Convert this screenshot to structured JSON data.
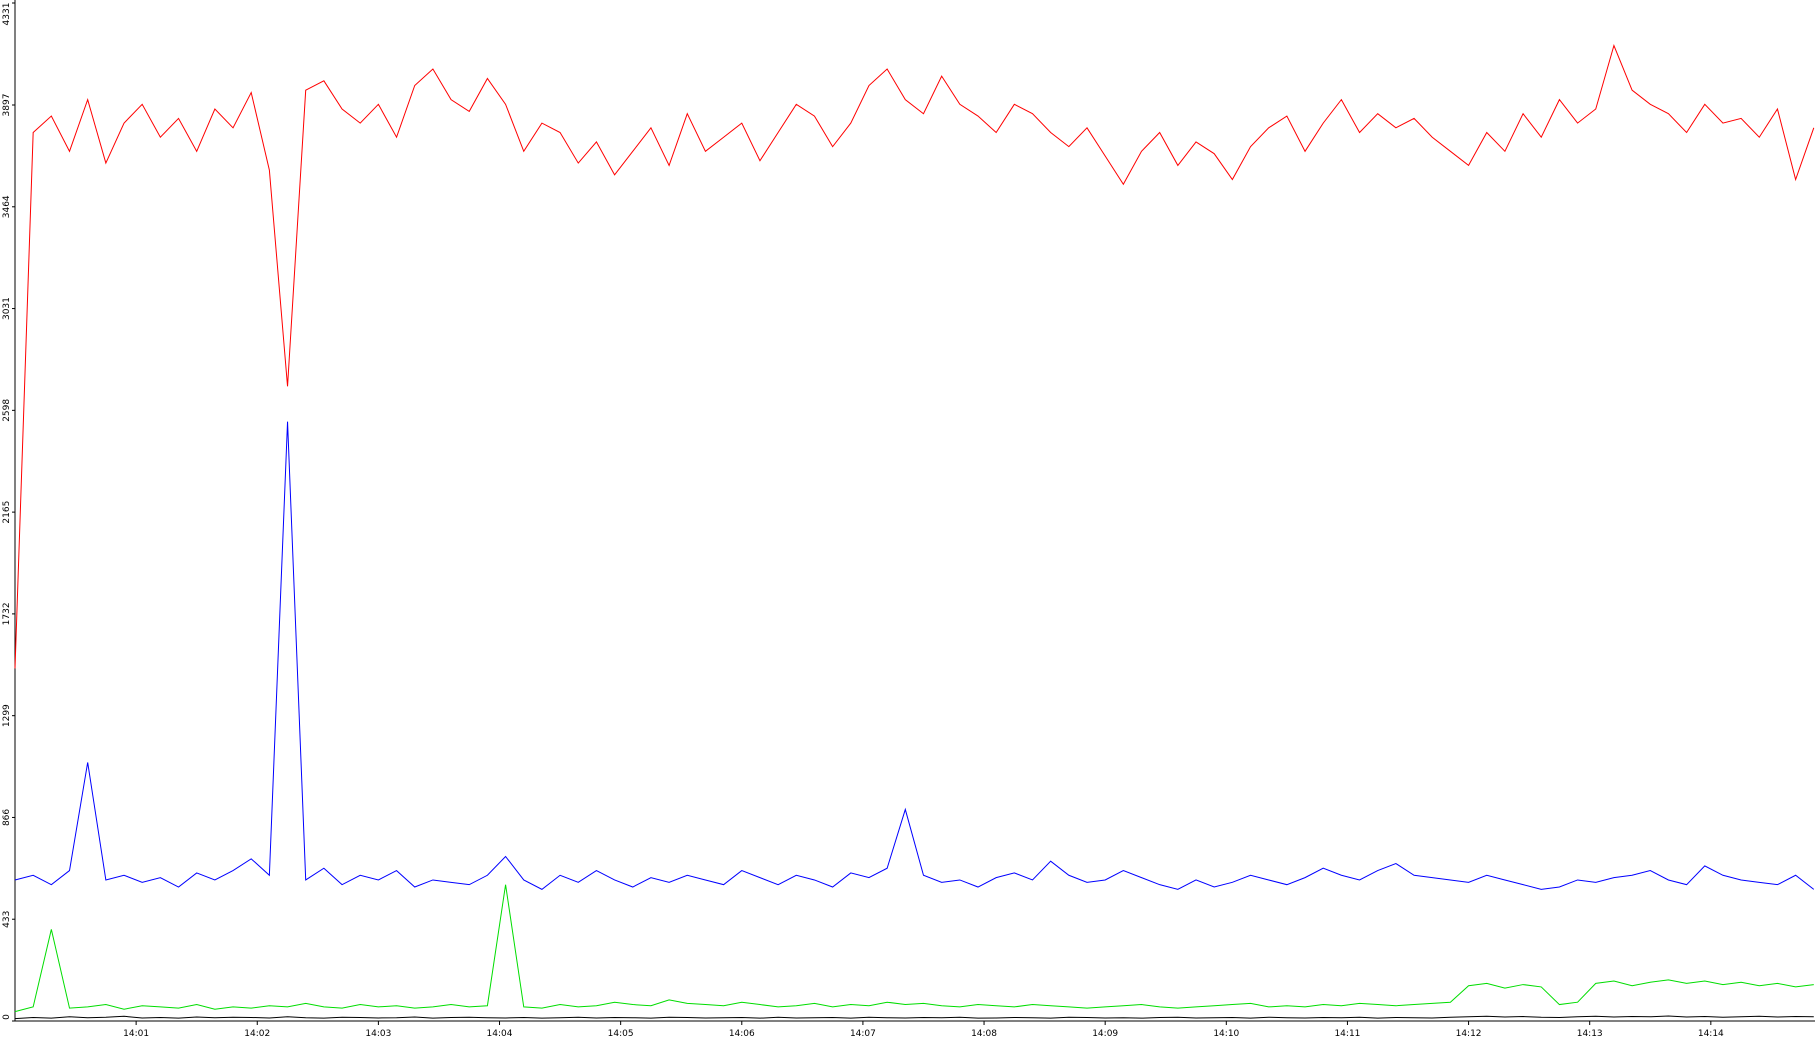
{
  "chart_data": {
    "type": "line",
    "x": [
      840.0,
      840.15,
      840.3,
      840.45,
      840.6,
      840.75,
      840.9,
      841.05,
      841.2,
      841.35,
      841.5,
      841.65,
      841.8,
      841.95,
      842.1,
      842.25,
      842.4,
      842.55,
      842.7,
      842.85,
      843.0,
      843.15,
      843.3,
      843.45,
      843.6,
      843.75,
      843.9,
      844.05,
      844.2,
      844.35,
      844.5,
      844.65,
      844.8,
      844.95,
      845.1,
      845.25,
      845.4,
      845.55,
      845.7,
      845.85,
      846.0,
      846.15,
      846.3,
      846.45,
      846.6,
      846.75,
      846.9,
      847.05,
      847.2,
      847.35,
      847.5,
      847.65,
      847.8,
      847.95,
      848.1,
      848.25,
      848.4,
      848.55,
      848.7,
      848.85,
      849.0,
      849.15,
      849.3,
      849.45,
      849.6,
      849.75,
      849.9,
      850.05,
      850.2,
      850.35,
      850.5,
      850.65,
      850.8,
      850.95,
      851.1,
      851.25,
      851.4,
      851.55,
      851.7,
      851.85,
      852.0,
      852.15,
      852.3,
      852.45,
      852.6,
      852.75,
      852.9,
      853.05,
      853.2,
      853.35,
      853.5,
      853.65,
      853.8,
      853.95,
      854.1,
      854.25,
      854.4,
      854.55,
      854.7,
      854.85
    ],
    "series": [
      {
        "name": "red",
        "color": "#ff0000",
        "values": [
          1500,
          3780,
          3850,
          3700,
          3920,
          3650,
          3820,
          3900,
          3760,
          3840,
          3700,
          3880,
          3800,
          3950,
          3620,
          2700,
          3960,
          4000,
          3880,
          3820,
          3900,
          3760,
          3980,
          4050,
          3920,
          3870,
          4010,
          3900,
          3700,
          3820,
          3780,
          3650,
          3740,
          3600,
          3700,
          3800,
          3640,
          3860,
          3700,
          3760,
          3820,
          3660,
          3780,
          3900,
          3850,
          3720,
          3820,
          3980,
          4050,
          3920,
          3860,
          4020,
          3900,
          3850,
          3780,
          3900,
          3860,
          3780,
          3720,
          3800,
          3680,
          3560,
          3700,
          3780,
          3640,
          3740,
          3690,
          3580,
          3720,
          3800,
          3850,
          3700,
          3820,
          3920,
          3780,
          3860,
          3800,
          3840,
          3760,
          3700,
          3640,
          3780,
          3700,
          3860,
          3760,
          3920,
          3820,
          3880,
          4150,
          3960,
          3900,
          3860,
          3780,
          3900,
          3820,
          3840,
          3760,
          3880,
          3580,
          3800
        ]
      },
      {
        "name": "blue",
        "color": "#0000ff",
        "values": [
          600,
          620,
          580,
          640,
          1100,
          600,
          620,
          590,
          610,
          570,
          630,
          600,
          640,
          690,
          620,
          2550,
          600,
          650,
          580,
          620,
          600,
          640,
          570,
          600,
          590,
          580,
          620,
          700,
          600,
          560,
          620,
          590,
          640,
          600,
          570,
          610,
          590,
          620,
          600,
          580,
          640,
          610,
          580,
          620,
          600,
          570,
          630,
          610,
          650,
          900,
          620,
          590,
          600,
          570,
          610,
          630,
          600,
          680,
          620,
          590,
          600,
          640,
          610,
          580,
          560,
          600,
          570,
          590,
          620,
          600,
          580,
          610,
          650,
          620,
          600,
          640,
          670,
          620,
          610,
          600,
          590,
          620,
          600,
          580,
          560,
          570,
          600,
          590,
          610,
          620,
          640,
          600,
          580,
          660,
          620,
          600,
          590,
          580,
          620,
          560
        ]
      },
      {
        "name": "green",
        "color": "#00dd00",
        "values": [
          40,
          60,
          390,
          55,
          60,
          70,
          50,
          65,
          60,
          55,
          70,
          50,
          60,
          55,
          65,
          60,
          75,
          60,
          55,
          70,
          60,
          65,
          55,
          60,
          70,
          60,
          65,
          580,
          60,
          55,
          70,
          60,
          65,
          80,
          70,
          65,
          90,
          75,
          70,
          65,
          80,
          70,
          60,
          65,
          75,
          60,
          70,
          65,
          80,
          70,
          75,
          65,
          60,
          70,
          65,
          60,
          70,
          65,
          60,
          55,
          60,
          65,
          70,
          60,
          55,
          60,
          65,
          70,
          75,
          60,
          65,
          60,
          70,
          65,
          75,
          70,
          65,
          70,
          75,
          80,
          150,
          160,
          140,
          155,
          145,
          70,
          80,
          160,
          170,
          150,
          165,
          175,
          160,
          170,
          155,
          165,
          150,
          160,
          145,
          155
        ]
      },
      {
        "name": "black",
        "color": "#000000",
        "values": [
          10,
          15,
          12,
          18,
          14,
          16,
          20,
          13,
          15,
          12,
          17,
          14,
          16,
          15,
          13,
          18,
          14,
          12,
          16,
          15,
          13,
          14,
          17,
          12,
          15,
          16,
          14,
          13,
          15,
          12,
          14,
          16,
          13,
          15,
          14,
          12,
          16,
          15,
          13,
          14,
          15,
          12,
          16,
          13,
          14,
          15,
          12,
          16,
          14,
          13,
          15,
          14,
          16,
          12,
          13,
          15,
          14,
          12,
          16,
          15,
          13,
          14,
          12,
          15,
          16,
          13,
          14,
          15,
          12,
          16,
          14,
          13,
          15,
          14,
          16,
          12,
          15,
          14,
          13,
          16,
          18,
          20,
          17,
          19,
          16,
          15,
          18,
          20,
          17,
          19,
          18,
          21,
          17,
          19,
          16,
          18,
          20,
          17,
          19,
          18
        ]
      }
    ],
    "xlim": [
      840.0,
      854.86
    ],
    "xticks": [
      {
        "value": 841,
        "label": "14:01"
      },
      {
        "value": 842,
        "label": "14:02"
      },
      {
        "value": 843,
        "label": "14:03"
      },
      {
        "value": 844,
        "label": "14:04"
      },
      {
        "value": 845,
        "label": "14:05"
      },
      {
        "value": 846,
        "label": "14:06"
      },
      {
        "value": 847,
        "label": "14:07"
      },
      {
        "value": 848,
        "label": "14:08"
      },
      {
        "value": 849,
        "label": "14:09"
      },
      {
        "value": 850,
        "label": "14:10"
      },
      {
        "value": 851,
        "label": "14:11"
      },
      {
        "value": 852,
        "label": "14:12"
      },
      {
        "value": 853,
        "label": "14:13"
      },
      {
        "value": 854,
        "label": "14:14"
      }
    ],
    "ylim": [
      0,
      4331
    ],
    "yticks": [
      0,
      433,
      866,
      1299,
      1732,
      2165,
      2598,
      3031,
      3464,
      3897,
      4331
    ]
  }
}
